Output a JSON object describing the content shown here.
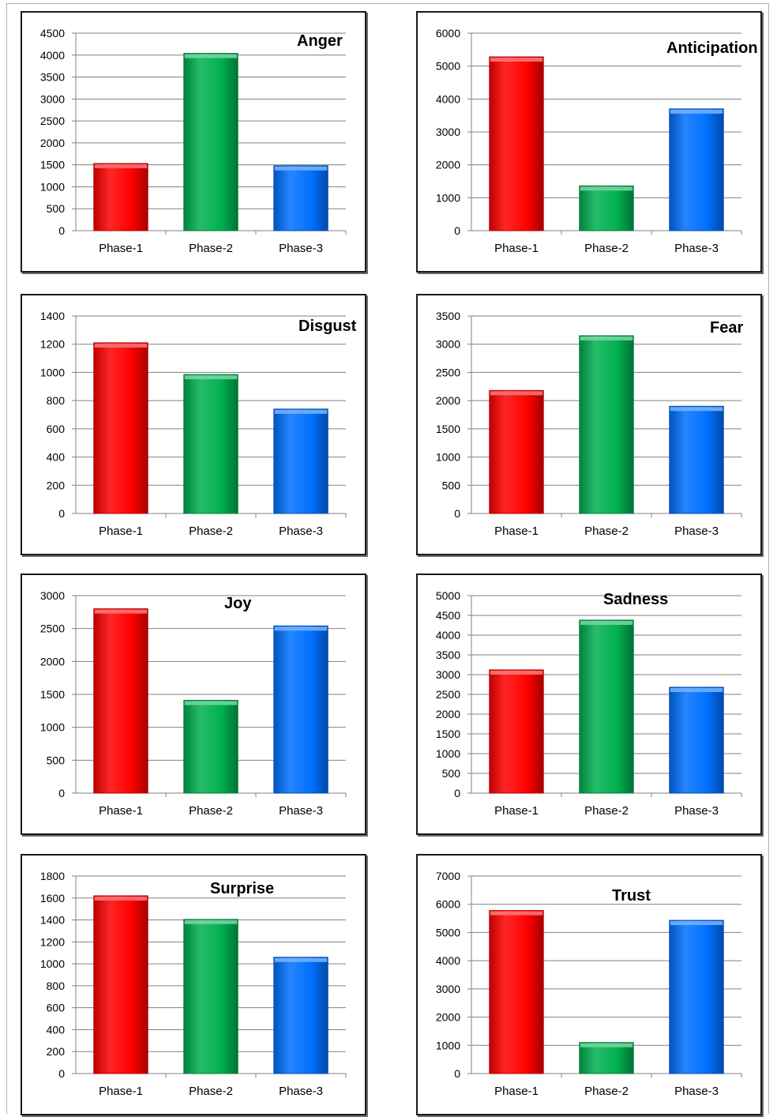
{
  "colors": {
    "phase1": "#ff0000",
    "phase2": "#00b050",
    "phase3": "#0070ff",
    "grid": "#808080",
    "frame": "#1a1a1a"
  },
  "chart_data": [
    {
      "type": "bar",
      "title": "Anger",
      "categories": [
        "Phase-1",
        "Phase-2",
        "Phase-3"
      ],
      "values": [
        1530,
        4040,
        1480
      ],
      "ylim": [
        0,
        4500
      ],
      "tick_step": 500,
      "grid": true
    },
    {
      "type": "bar",
      "title": "Anticipation",
      "categories": [
        "Phase-1",
        "Phase-2",
        "Phase-3"
      ],
      "values": [
        5280,
        1360,
        3700
      ],
      "ylim": [
        0,
        6000
      ],
      "tick_step": 1000,
      "grid": true
    },
    {
      "type": "bar",
      "title": "Disgust",
      "categories": [
        "Phase-1",
        "Phase-2",
        "Phase-3"
      ],
      "values": [
        1210,
        985,
        740
      ],
      "ylim": [
        0,
        1400
      ],
      "tick_step": 200,
      "grid": true
    },
    {
      "type": "bar",
      "title": "Fear",
      "categories": [
        "Phase-1",
        "Phase-2",
        "Phase-3"
      ],
      "values": [
        2180,
        3150,
        1900
      ],
      "ylim": [
        0,
        3500
      ],
      "tick_step": 500,
      "grid": true
    },
    {
      "type": "bar",
      "title": "Joy",
      "categories": [
        "Phase-1",
        "Phase-2",
        "Phase-3"
      ],
      "values": [
        2800,
        1410,
        2540
      ],
      "ylim": [
        0,
        3000
      ],
      "tick_step": 500,
      "grid": true
    },
    {
      "type": "bar",
      "title": "Sadness",
      "categories": [
        "Phase-1",
        "Phase-2",
        "Phase-3"
      ],
      "values": [
        3120,
        4380,
        2680
      ],
      "ylim": [
        0,
        5000
      ],
      "tick_step": 500,
      "grid": true
    },
    {
      "type": "bar",
      "title": "Surprise",
      "categories": [
        "Phase-1",
        "Phase-2",
        "Phase-3"
      ],
      "values": [
        1620,
        1405,
        1060
      ],
      "ylim": [
        0,
        1800
      ],
      "tick_step": 200,
      "grid": true
    },
    {
      "type": "bar",
      "title": "Trust",
      "categories": [
        "Phase-1",
        "Phase-2",
        "Phase-3"
      ],
      "values": [
        5780,
        1100,
        5430
      ],
      "ylim": [
        0,
        7000
      ],
      "tick_step": 1000,
      "grid": true
    }
  ]
}
